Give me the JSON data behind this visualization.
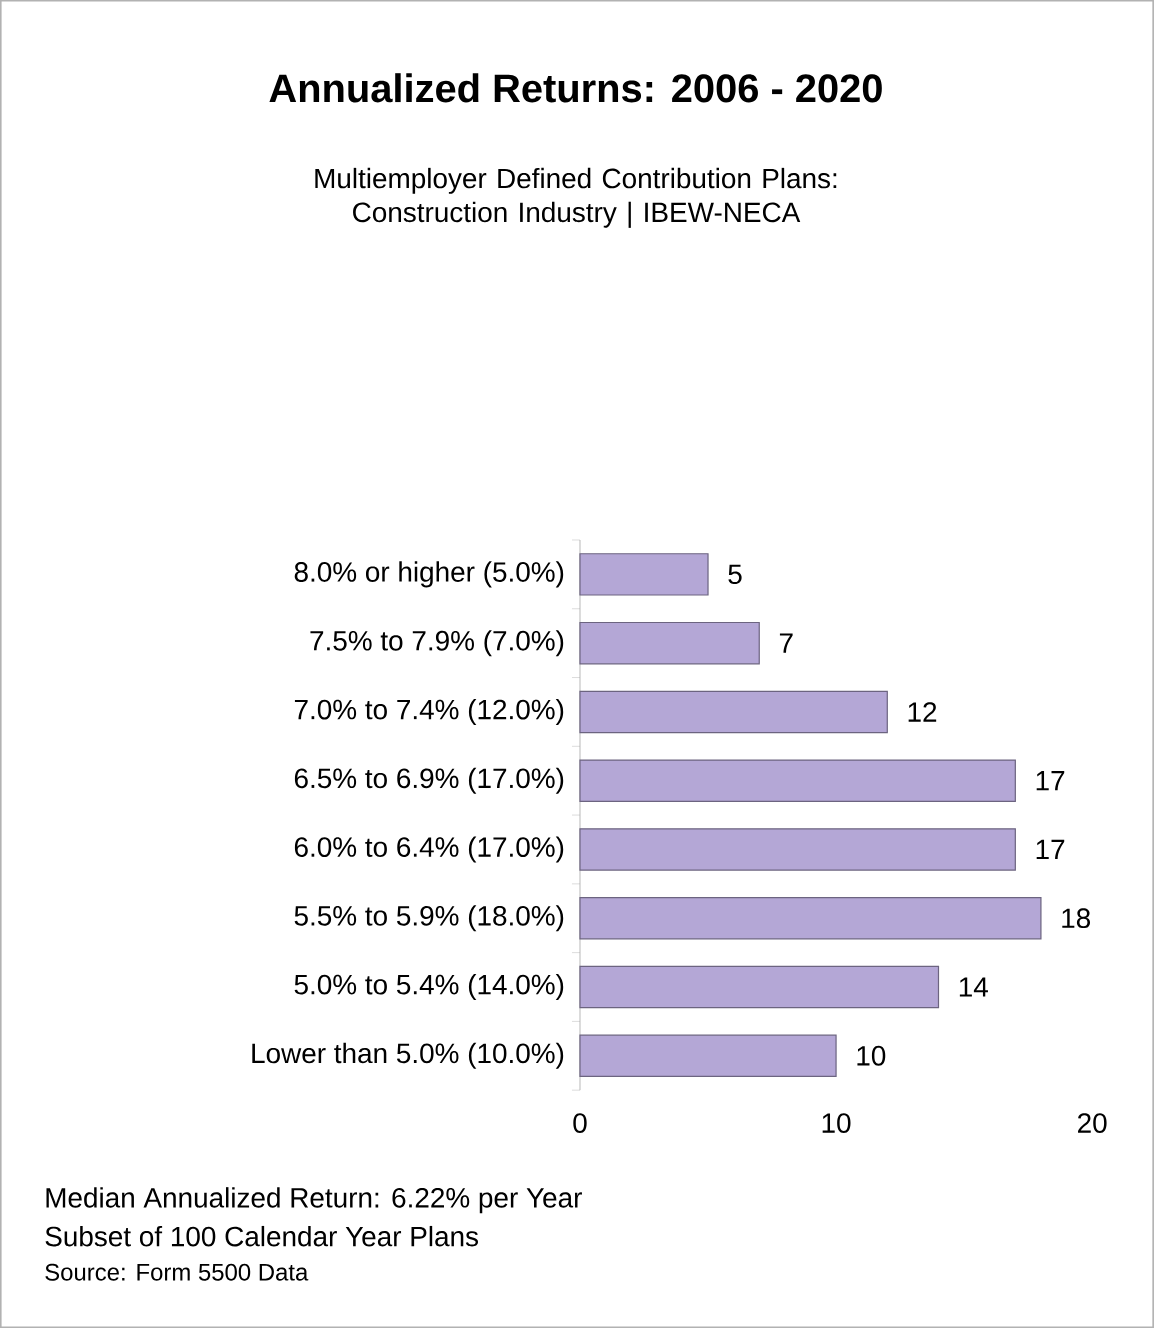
{
  "chart_data": {
    "type": "bar",
    "orientation": "horizontal",
    "title": "Annualized Returns:  2006 - 2020",
    "subtitle": "Multiemployer Defined Contribution Plans: Construction Industry | IBEW-NECA",
    "categories": [
      "8.0% or higher  (5.0%)",
      "7.5% to 7.9%  (7.0%)",
      "7.0% to 7.4%  (12.0%)",
      "6.5% to 6.9%  (17.0%)",
      "6.0% to 6.4%  (17.0%)",
      "5.5% to 5.9%  (18.0%)",
      "5.0% to 5.4%  (14.0%)",
      "Lower than 5.0%  (10.0%)"
    ],
    "values": [
      5,
      7,
      12,
      17,
      17,
      18,
      14,
      10
    ],
    "color": "#b4a7d6",
    "xlim": [
      0,
      20
    ],
    "xticks": [
      0,
      10,
      20
    ],
    "data_labels": true,
    "annotations": [
      "Median Annualized Return:  6.22% per Year",
      "Subset of 100 Calendar Year Plans",
      "Source: Form 5500 Data"
    ]
  }
}
